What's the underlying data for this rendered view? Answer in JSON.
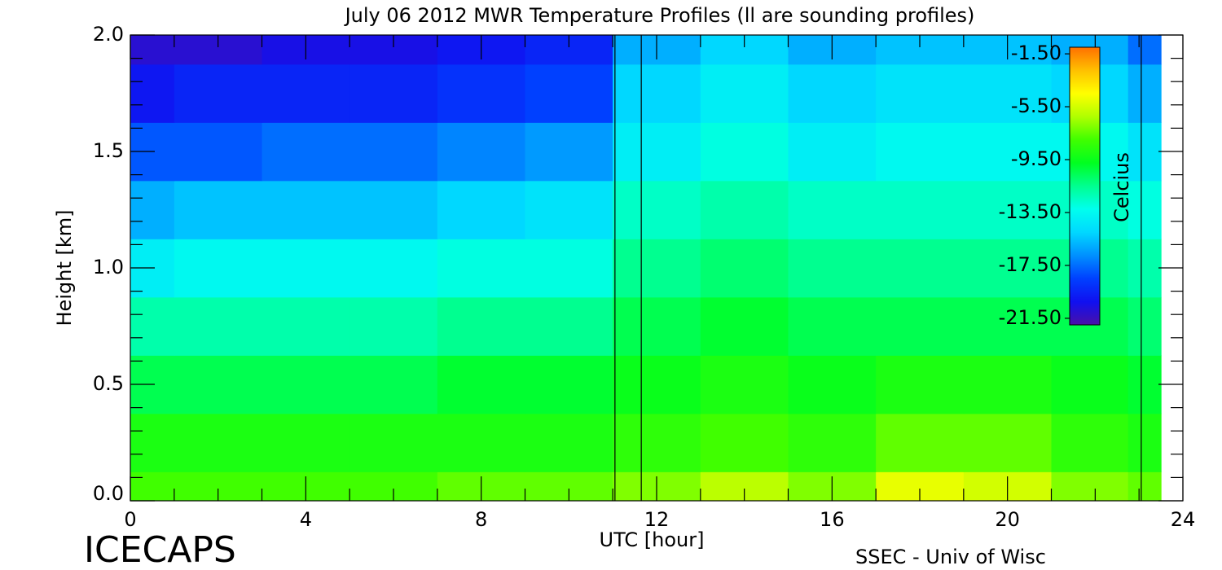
{
  "chart_data": {
    "type": "heatmap",
    "title": "July 06 2012 MWR Temperature Profiles (ll are sounding profiles)",
    "x_label": "UTC [hour]",
    "y_label": "Height [km]",
    "colorbar_label": "Celcius",
    "logo": "ICECAPS",
    "credit": "SSEC - Univ of Wisc",
    "x": [
      0,
      2,
      4,
      6,
      8,
      10,
      12,
      14,
      16,
      18,
      20,
      22,
      23.5
    ],
    "y": [
      0,
      0.25,
      0.5,
      0.75,
      1.0,
      1.25,
      1.5,
      1.75,
      2.0
    ],
    "z": [
      [
        -8,
        -8,
        -8,
        -8,
        -7.5,
        -7.5,
        -7,
        -6,
        -7,
        -5,
        -5.5,
        -7,
        -7.5
      ],
      [
        -9,
        -9,
        -9,
        -9,
        -9,
        -9,
        -8.5,
        -8,
        -8.5,
        -7.5,
        -7.5,
        -8.5,
        -9
      ],
      [
        -10.5,
        -10.5,
        -10.5,
        -10.5,
        -10,
        -10,
        -9.5,
        -9,
        -9.5,
        -9,
        -9,
        -9.5,
        -10
      ],
      [
        -12,
        -12,
        -12,
        -12,
        -11.5,
        -11.5,
        -10.5,
        -10,
        -10.5,
        -10.5,
        -10.5,
        -10.5,
        -11
      ],
      [
        -14,
        -13.5,
        -13.5,
        -13.5,
        -13,
        -13,
        -11.5,
        -11,
        -11.5,
        -11.5,
        -11.5,
        -11.5,
        -12
      ],
      [
        -16,
        -15.5,
        -15.5,
        -15.5,
        -15,
        -14.5,
        -12.5,
        -12,
        -12.5,
        -12.5,
        -12.5,
        -12.5,
        -13
      ],
      [
        -18,
        -18,
        -17.5,
        -17.5,
        -17,
        -16.5,
        -14,
        -13,
        -14,
        -13.5,
        -13.5,
        -13.5,
        -14.5
      ],
      [
        -20,
        -19.5,
        -19.5,
        -19.5,
        -19,
        -18.5,
        -15,
        -14,
        -15,
        -14.5,
        -14.5,
        -15,
        -16
      ],
      [
        -21,
        -21,
        -20.5,
        -20.5,
        -20,
        -19.5,
        -16,
        -15,
        -16,
        -15.5,
        -15.5,
        -16,
        -17.5
      ]
    ],
    "sounding_lines": [
      11.05,
      11.65,
      23.05
    ],
    "xlim": [
      0,
      24
    ],
    "ylim": [
      0,
      2
    ],
    "xticks": [
      0,
      4,
      8,
      12,
      16,
      20,
      24
    ],
    "yticks": [
      {
        "value": 0,
        "label": "0.0"
      },
      0.5,
      {
        "value": 1,
        "label": "1.0"
      },
      1.5,
      {
        "value": 2,
        "label": "2.0"
      }
    ],
    "xminorticks": [
      1,
      2,
      3,
      5,
      6,
      7,
      9,
      10,
      11,
      13,
      14,
      15,
      17,
      18,
      19,
      21,
      22,
      23
    ],
    "yminorticks": [
      0.1,
      0.2,
      0.3,
      0.4,
      0.6,
      0.7,
      0.8,
      0.9,
      1.1,
      1.2,
      1.3,
      1.4,
      1.6,
      1.7,
      1.8,
      1.9
    ],
    "clim": [
      -22,
      -1
    ],
    "cticks": [
      {
        "value": -1.5,
        "label": "-1.50"
      },
      {
        "value": -5.5,
        "label": "-5.50"
      },
      {
        "value": -9.5,
        "label": "-9.50"
      },
      {
        "value": -13.5,
        "label": "-13.50"
      },
      {
        "value": -17.5,
        "label": "-17.50"
      },
      {
        "value": -21.5,
        "label": "-21.50"
      }
    ],
    "colormap": [
      "#4a10a8",
      "#1010f0",
      "#0040ff",
      "#0090ff",
      "#00d8ff",
      "#00ffee",
      "#00ff90",
      "#00ff20",
      "#40ff00",
      "#b0ff00",
      "#ffff00",
      "#ffc000",
      "#ff7000"
    ]
  }
}
